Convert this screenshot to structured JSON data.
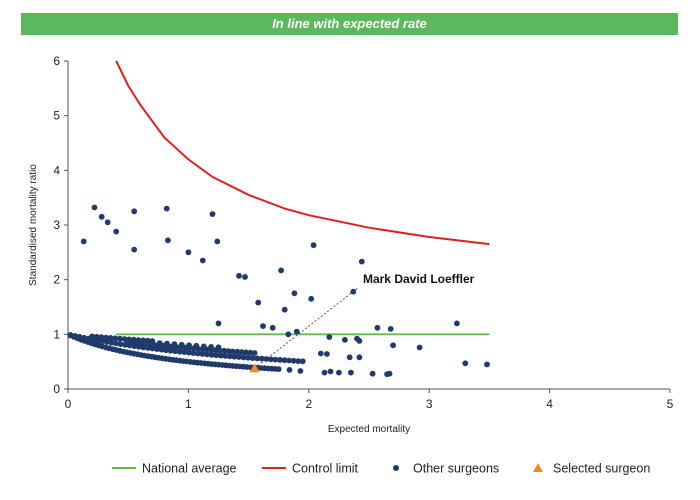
{
  "banner": {
    "text": "In line with expected rate",
    "color": "#5cb85c"
  },
  "chart_data": {
    "type": "scatter",
    "xlabel": "Expected mortality",
    "ylabel": "Standardised mortality ratio",
    "xlim": [
      0,
      5
    ],
    "ylim": [
      0,
      6
    ],
    "x_ticks": [
      "0",
      "1",
      "2",
      "3",
      "4",
      "5"
    ],
    "y_ticks": [
      "0",
      "1",
      "2",
      "3",
      "4",
      "5",
      "6"
    ],
    "grid": false,
    "legend_position": "bottom",
    "annotation": {
      "text": "Mark David Loeffler",
      "x": 1.55,
      "y": 0.38,
      "label_x": 2.45,
      "label_y": 1.9
    },
    "series": [
      {
        "name": "National average",
        "kind": "line",
        "color": "#66bb44",
        "x": [
          0.4,
          3.5
        ],
        "y": [
          1,
          1
        ]
      },
      {
        "name": "Control limit",
        "kind": "line",
        "color": "#e02020",
        "x": [
          0.4,
          0.5,
          0.6,
          0.8,
          1.0,
          1.2,
          1.5,
          1.8,
          2.0,
          2.5,
          3.0,
          3.5
        ],
        "y": [
          6.0,
          5.55,
          5.2,
          4.6,
          4.2,
          3.88,
          3.55,
          3.3,
          3.18,
          2.95,
          2.78,
          2.65
        ]
      },
      {
        "name": "Other surgeons",
        "kind": "scatter",
        "color": "#1f3a6b",
        "curves": [
          {
            "k": 1,
            "x_from": 0.02,
            "x_to": 1.75,
            "count": 60
          },
          {
            "k": 2,
            "x_from": 0.02,
            "x_to": 1.95,
            "count": 52
          },
          {
            "k": 3,
            "x_from": 0.5,
            "x_to": 1.55,
            "count": 30
          },
          {
            "k": 4,
            "x_from": 0.7,
            "x_to": 1.25,
            "count": 10
          },
          {
            "k": 5,
            "x_from": 0.2,
            "x_to": 0.7,
            "count": 14
          }
        ],
        "x": [
          0.22,
          0.28,
          0.33,
          0.4,
          0.55,
          0.82,
          1.2,
          0.13,
          0.55,
          0.83,
          1.0,
          1.12,
          1.24,
          1.42,
          1.47,
          1.58,
          1.77,
          1.8,
          1.88,
          2.04,
          2.44,
          2.37,
          2.02,
          1.25,
          1.62,
          1.7,
          1.83,
          1.9,
          2.17,
          2.3,
          2.4,
          2.42,
          2.57,
          2.68,
          2.7,
          2.92,
          3.23,
          3.3,
          3.48,
          2.1,
          2.15,
          2.13,
          2.18,
          2.34,
          2.42,
          2.65,
          2.67,
          1.84,
          1.93,
          2.25,
          2.35,
          2.53
        ],
        "y": [
          3.32,
          3.15,
          3.05,
          2.88,
          3.25,
          3.3,
          3.2,
          2.7,
          2.55,
          2.72,
          2.5,
          2.35,
          2.7,
          2.07,
          2.05,
          1.58,
          2.17,
          1.45,
          1.75,
          2.63,
          2.33,
          1.78,
          1.65,
          1.2,
          1.15,
          1.12,
          1.0,
          1.05,
          0.95,
          0.9,
          0.92,
          0.88,
          1.12,
          1.1,
          0.8,
          0.76,
          1.2,
          0.47,
          0.45,
          0.65,
          0.64,
          0.3,
          0.32,
          0.58,
          0.58,
          0.27,
          0.28,
          0.35,
          0.33,
          0.3,
          0.3,
          0.28
        ]
      },
      {
        "name": "Selected surgeon",
        "kind": "marker",
        "color": "#f08a1c",
        "x": [
          1.55
        ],
        "y": [
          0.38
        ]
      }
    ]
  }
}
